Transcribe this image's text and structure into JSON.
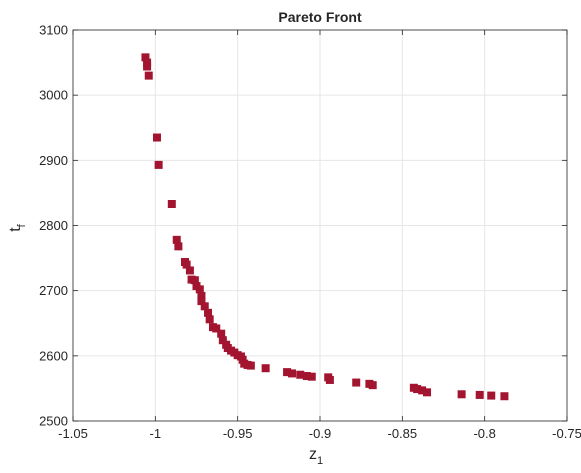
{
  "chart_data": {
    "type": "scatter",
    "title": "Pareto Front",
    "xlabel_main": "z",
    "xlabel_sub": "1",
    "ylabel_main": "t",
    "ylabel_sub": "f",
    "xlim": [
      -1.05,
      -0.75
    ],
    "ylim": [
      2500,
      3100
    ],
    "xticks": [
      -1.05,
      -1.0,
      -0.95,
      -0.9,
      -0.85,
      -0.8,
      -0.75
    ],
    "xtick_labels": [
      "-1.05",
      "-1",
      "-0.95",
      "-0.9",
      "-0.85",
      "-0.8",
      "-0.75"
    ],
    "yticks": [
      2500,
      2600,
      2700,
      2800,
      2900,
      3000,
      3100
    ],
    "ytick_labels": [
      "2500",
      "2600",
      "2700",
      "2800",
      "2900",
      "3000",
      "3100"
    ],
    "grid": true,
    "marker": "square",
    "marker_color": "#A2142F",
    "series": [
      {
        "points": [
          [
            -1.006,
            3058
          ],
          [
            -1.005,
            3050
          ],
          [
            -1.005,
            3044
          ],
          [
            -1.004,
            3030
          ],
          [
            -0.999,
            2935
          ],
          [
            -0.998,
            2893
          ],
          [
            -0.99,
            2833
          ],
          [
            -0.987,
            2778
          ],
          [
            -0.986,
            2768
          ],
          [
            -0.982,
            2744
          ],
          [
            -0.981,
            2740
          ],
          [
            -0.979,
            2731
          ],
          [
            -0.978,
            2717
          ],
          [
            -0.976,
            2716
          ],
          [
            -0.975,
            2707
          ],
          [
            -0.973,
            2702
          ],
          [
            -0.972,
            2692
          ],
          [
            -0.972,
            2684
          ],
          [
            -0.97,
            2676
          ],
          [
            -0.968,
            2666
          ],
          [
            -0.967,
            2656
          ],
          [
            -0.965,
            2644
          ],
          [
            -0.963,
            2642
          ],
          [
            -0.96,
            2634
          ],
          [
            -0.959,
            2624
          ],
          [
            -0.957,
            2617
          ],
          [
            -0.956,
            2612
          ],
          [
            -0.954,
            2608
          ],
          [
            -0.952,
            2605
          ],
          [
            -0.95,
            2601
          ],
          [
            -0.948,
            2599
          ],
          [
            -0.947,
            2594
          ],
          [
            -0.946,
            2588
          ],
          [
            -0.944,
            2586
          ],
          [
            -0.942,
            2585
          ],
          [
            -0.933,
            2581
          ],
          [
            -0.92,
            2575
          ],
          [
            -0.917,
            2573
          ],
          [
            -0.912,
            2571
          ],
          [
            -0.908,
            2569
          ],
          [
            -0.905,
            2568
          ],
          [
            -0.895,
            2567
          ],
          [
            -0.894,
            2563
          ],
          [
            -0.878,
            2559
          ],
          [
            -0.87,
            2557
          ],
          [
            -0.868,
            2555
          ],
          [
            -0.843,
            2551
          ],
          [
            -0.841,
            2549
          ],
          [
            -0.838,
            2547
          ],
          [
            -0.835,
            2544
          ],
          [
            -0.814,
            2541
          ],
          [
            -0.803,
            2540
          ],
          [
            -0.796,
            2539
          ],
          [
            -0.788,
            2538
          ]
        ]
      }
    ]
  }
}
